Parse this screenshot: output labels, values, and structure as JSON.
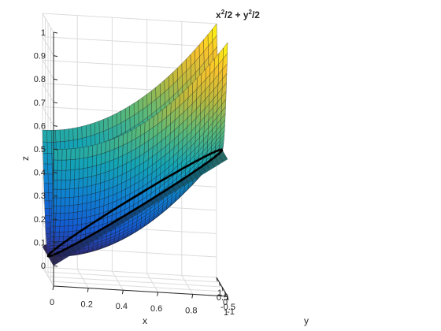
{
  "chart_data": {
    "type": "surface",
    "title": {
      "base_x": "x",
      "sup_x": "2",
      "mid": "/2 + y",
      "sup_y": "2",
      "end": "/2"
    },
    "xlabel": "x",
    "ylabel": "y",
    "zlabel": "z",
    "xlim": [
      0,
      1
    ],
    "ylim": [
      -1,
      1
    ],
    "zlim": [
      0,
      1
    ],
    "x_ticks": [
      "0",
      "0.2",
      "0.4",
      "0.6",
      "0.8",
      "1"
    ],
    "y_ticks": [
      "-1",
      "-0.5",
      "0",
      "0.5",
      "1"
    ],
    "z_ticks": [
      "0",
      "0.1",
      "0.2",
      "0.3",
      "0.4",
      "0.5",
      "0.6",
      "0.7",
      "0.8",
      "0.9",
      "1"
    ],
    "grid": true,
    "colormap": "parula",
    "surfaces": [
      {
        "name": "paraboloid",
        "expression": "z = x^2/2 + y^2/2",
        "x_range": [
          0,
          1
        ],
        "y_range": [
          -1,
          1
        ]
      },
      {
        "name": "plane",
        "expression": "z = x/2",
        "x_range": [
          0,
          1
        ],
        "y_range": [
          -1,
          1
        ]
      }
    ],
    "curve": {
      "name": "intersection",
      "description": "x^2/2 + y^2/2 = x/2",
      "color": "#000000"
    },
    "colors": {
      "edge": "#1a1a1a",
      "grid": "#dcdcdc",
      "axis": "#262626",
      "box": "#5a5a5a"
    }
  }
}
